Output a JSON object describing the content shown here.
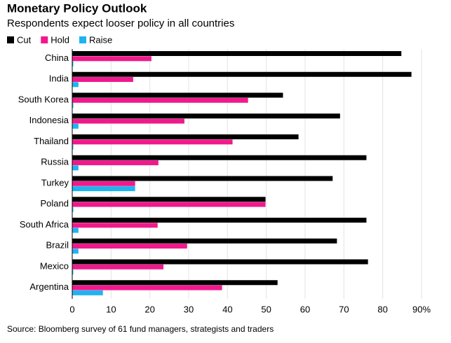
{
  "chart_data": {
    "type": "bar",
    "orientation": "horizontal",
    "title": "Monetary Policy Outlook",
    "subtitle": "Respondents expect looser policy in all countries",
    "source": "Source: Bloomberg survey of 61 fund managers, strategists and traders",
    "categories": [
      "China",
      "India",
      "South Korea",
      "Indonesia",
      "Thailand",
      "Russia",
      "Turkey",
      "Poland",
      "South Africa",
      "Brazil",
      "Mexico",
      "Argentina"
    ],
    "series": [
      {
        "name": "Cut",
        "color": "#000000",
        "values": [
          84.8,
          87.4,
          54.3,
          69,
          58.3,
          75.8,
          67.1,
          49.8,
          75.8,
          68.2,
          76.2,
          52.9
        ]
      },
      {
        "name": "Hold",
        "color": "#f0198c",
        "values": [
          20.4,
          15.7,
          45.3,
          28.9,
          41.3,
          22.2,
          16.2,
          49.8,
          22,
          29.6,
          23.5,
          38.6
        ]
      },
      {
        "name": "Raise",
        "color": "#1fb4ef",
        "values": [
          0,
          1.6,
          0,
          1.6,
          0,
          1.6,
          16.2,
          0,
          1.6,
          1.6,
          0,
          7.9
        ]
      }
    ],
    "xlim": [
      0,
      90
    ],
    "xticks": [
      0,
      10,
      20,
      30,
      40,
      50,
      60,
      70,
      80,
      {
        "value": 90,
        "label": "90%"
      }
    ],
    "grid": true
  }
}
